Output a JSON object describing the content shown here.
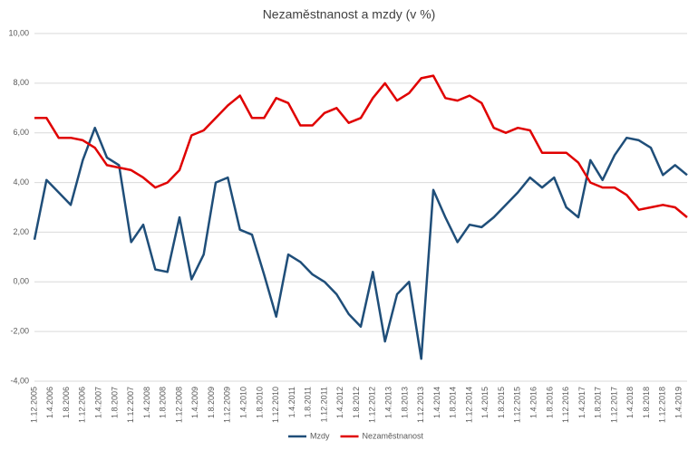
{
  "chart_data": {
    "type": "line",
    "title": "Nezaměstnanost a mzdy (v %)",
    "x": [
      "1.12.2005",
      "1.3.2006",
      "1.6.2006",
      "1.9.2006",
      "1.12.2006",
      "1.3.2007",
      "1.6.2007",
      "1.9.2007",
      "1.12.2007",
      "1.3.2008",
      "1.6.2008",
      "1.9.2008",
      "1.12.2008",
      "1.3.2009",
      "1.6.2009",
      "1.9.2009",
      "1.12.2009",
      "1.3.2010",
      "1.6.2010",
      "1.9.2010",
      "1.12.2010",
      "1.3.2011",
      "1.6.2011",
      "1.9.2011",
      "1.12.2011",
      "1.3.2012",
      "1.6.2012",
      "1.9.2012",
      "1.12.2012",
      "1.3.2013",
      "1.6.2013",
      "1.9.2013",
      "1.12.2013",
      "1.3.2014",
      "1.6.2014",
      "1.9.2014",
      "1.12.2014",
      "1.3.2015",
      "1.6.2015",
      "1.9.2015",
      "1.12.2015",
      "1.3.2016",
      "1.6.2016",
      "1.9.2016",
      "1.12.2016",
      "1.3.2017",
      "1.6.2017",
      "1.9.2017",
      "1.12.2017",
      "1.3.2018",
      "1.6.2018",
      "1.9.2018",
      "1.12.2018",
      "1.3.2019",
      "1.6.2019"
    ],
    "series": [
      {
        "name": "Mzdy",
        "color": "#1f4e79",
        "values": [
          1.7,
          4.1,
          3.6,
          3.1,
          4.9,
          6.2,
          5.0,
          4.7,
          1.6,
          2.3,
          0.5,
          0.4,
          2.6,
          0.1,
          1.1,
          4.0,
          4.2,
          2.1,
          1.9,
          0.3,
          -1.4,
          1.1,
          0.8,
          0.3,
          0.0,
          -0.5,
          -1.3,
          -1.8,
          0.4,
          -2.4,
          -0.5,
          0.0,
          -3.1,
          3.7,
          2.6,
          1.6,
          2.3,
          2.2,
          2.6,
          3.1,
          3.6,
          4.2,
          3.8,
          4.2,
          3.0,
          2.6,
          4.9,
          4.1,
          5.1,
          5.8,
          5.7,
          5.4,
          4.3,
          4.7,
          4.3
        ]
      },
      {
        "name": "Nezaměstnanost",
        "color": "#e00000",
        "values": [
          6.6,
          6.6,
          5.8,
          5.8,
          5.7,
          5.4,
          4.7,
          4.6,
          4.5,
          4.2,
          3.8,
          4.0,
          4.5,
          5.9,
          6.1,
          6.6,
          7.1,
          7.5,
          6.6,
          6.6,
          7.4,
          7.2,
          6.3,
          6.3,
          6.8,
          7.0,
          6.4,
          6.6,
          7.4,
          8.0,
          7.3,
          7.6,
          8.2,
          8.3,
          7.4,
          7.3,
          7.5,
          7.2,
          6.2,
          6.0,
          6.2,
          6.1,
          5.2,
          5.2,
          5.2,
          4.8,
          4.0,
          3.8,
          3.8,
          3.5,
          2.9,
          3.0,
          3.1,
          3.0,
          2.6
        ]
      }
    ],
    "xticks": [
      "1.12.2005",
      "1.4.2006",
      "1.8.2006",
      "1.12.2006",
      "1.4.2007",
      "1.8.2007",
      "1.12.2007",
      "1.4.2008",
      "1.8.2008",
      "1.12.2008",
      "1.4.2009",
      "1.8.2009",
      "1.12.2009",
      "1.4.2010",
      "1.8.2010",
      "1.12.2010",
      "1.4.2011",
      "1.8.2011",
      "1.12.2011",
      "1.4.2012",
      "1.8.2012",
      "1.12.2012",
      "1.4.2013",
      "1.8.2013",
      "1.12.2013",
      "1.4.2014",
      "1.8.2014",
      "1.12.2014",
      "1.4.2015",
      "1.8.2015",
      "1.12.2015",
      "1.4.2016",
      "1.8.2016",
      "1.12.2016",
      "1.4.2017",
      "1.8.2017",
      "1.12.2017",
      "1.4.2018",
      "1.8.2018",
      "1.12.2018",
      "1.4.2019"
    ],
    "ylim": [
      -4,
      10
    ],
    "yticks": [
      {
        "value": -4,
        "label": "-4,00"
      },
      {
        "value": -2,
        "label": "-2,00"
      },
      {
        "value": 0,
        "label": "0,00"
      },
      {
        "value": 2,
        "label": "2,00"
      },
      {
        "value": 4,
        "label": "4,00"
      },
      {
        "value": 6,
        "label": "6,00"
      },
      {
        "value": 8,
        "label": "8,00"
      },
      {
        "value": 10,
        "label": "10,00"
      }
    ],
    "grid": true,
    "legend": "bottom"
  }
}
